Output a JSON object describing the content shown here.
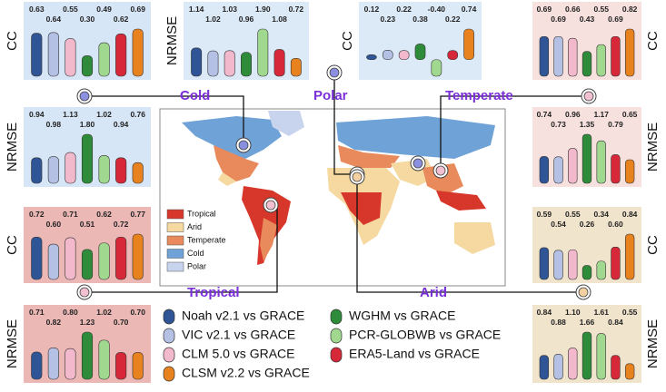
{
  "legend": [
    {
      "name": "Noah v2.1 vs GRACE",
      "color": "#2f5597"
    },
    {
      "name": "VIC v2.1 vs GRACE",
      "color": "#b4c0e4"
    },
    {
      "name": "CLM 5.0 vs GRACE",
      "color": "#f2b8cc"
    },
    {
      "name": "WGHM vs GRACE",
      "color": "#2e8b3a"
    },
    {
      "name": "PCR-GLOBWB vs GRACE",
      "color": "#9fd88e"
    },
    {
      "name": "ERA5-Land vs GRACE",
      "color": "#d7283a"
    },
    {
      "name": "CLSM v2.2 vs GRACE",
      "color": "#e8821e"
    }
  ],
  "regions": [
    "Cold",
    "Polar",
    "Temperate",
    "Tropical",
    "Arid"
  ],
  "map_legend": [
    {
      "name": "Tropical",
      "color": "#d7362b"
    },
    {
      "name": "Arid",
      "color": "#f5d9a0"
    },
    {
      "name": "Temperate",
      "color": "#e88a5c"
    },
    {
      "name": "Cold",
      "color": "#6fa2d6"
    },
    {
      "name": "Polar",
      "color": "#c8d4ee"
    }
  ],
  "chart_data": [
    {
      "type": "bar",
      "ylabel": "CC",
      "values": [
        0.63,
        0.64,
        0.55,
        0.3,
        0.49,
        0.62,
        0.69
      ],
      "value_labels": [
        "0.63",
        "0.64",
        "0.55",
        "0.30",
        "0.49",
        "0.62",
        "0.69"
      ]
    },
    {
      "type": "bar",
      "ylabel": "NRMSE",
      "values": [
        0.94,
        0.98,
        1.13,
        1.8,
        1.02,
        0.94,
        0.76
      ],
      "value_labels": [
        "0.94",
        "0.98",
        "1.13",
        "1.80",
        "1.02",
        "0.94",
        "0.76"
      ]
    },
    {
      "type": "bar",
      "ylabel": "NRMSE",
      "values": [
        1.14,
        1.02,
        1.03,
        0.96,
        1.9,
        1.08,
        0.72
      ],
      "value_labels": [
        "1.14",
        "1.02",
        "1.03",
        "0.96",
        "1.90",
        "1.08",
        "0.72"
      ]
    },
    {
      "type": "bar",
      "ylabel": "CC",
      "values": [
        0.12,
        0.23,
        0.22,
        0.38,
        -0.4,
        0.22,
        0.74
      ],
      "value_labels": [
        "0.12",
        "0.23",
        "0.22",
        "0.38",
        "-0.40",
        "0.22",
        "0.74"
      ]
    },
    {
      "type": "bar",
      "ylabel": "CC",
      "values": [
        0.69,
        0.69,
        0.66,
        0.43,
        0.55,
        0.69,
        0.82
      ],
      "value_labels": [
        "0.69",
        "0.69",
        "0.66",
        "0.43",
        "0.55",
        "0.69",
        "0.82"
      ]
    },
    {
      "type": "bar",
      "ylabel": "NRMSE",
      "values": [
        0.74,
        0.73,
        0.96,
        1.35,
        1.17,
        0.79,
        0.65
      ],
      "value_labels": [
        "0.74",
        "0.73",
        "0.96",
        "1.35",
        "1.17",
        "0.79",
        "0.65"
      ]
    },
    {
      "type": "bar",
      "ylabel": "CC",
      "values": [
        0.72,
        0.6,
        0.71,
        0.51,
        0.62,
        0.72,
        0.77
      ],
      "value_labels": [
        "0.72",
        "0.60",
        "0.71",
        "0.51",
        "0.62",
        "0.72",
        "0.77"
      ]
    },
    {
      "type": "bar",
      "ylabel": "NRMSE",
      "values": [
        0.71,
        0.82,
        0.8,
        1.23,
        1.02,
        0.7,
        0.7
      ],
      "value_labels": [
        "0.71",
        "0.82",
        "0.80",
        "1.23",
        "1.02",
        "0.70",
        "0.70"
      ]
    },
    {
      "type": "bar",
      "ylabel": "CC",
      "values": [
        0.59,
        0.54,
        0.55,
        0.26,
        0.34,
        0.6,
        0.84
      ],
      "value_labels": [
        "0.59",
        "0.54",
        "0.55",
        "0.26",
        "0.34",
        "0.60",
        "0.84"
      ]
    },
    {
      "type": "bar",
      "ylabel": "NRMSE",
      "values": [
        0.84,
        0.88,
        1.1,
        1.66,
        1.61,
        0.84,
        0.55
      ],
      "value_labels": [
        "0.84",
        "0.88",
        "1.10",
        "1.66",
        "1.61",
        "0.84",
        "0.55"
      ]
    }
  ]
}
